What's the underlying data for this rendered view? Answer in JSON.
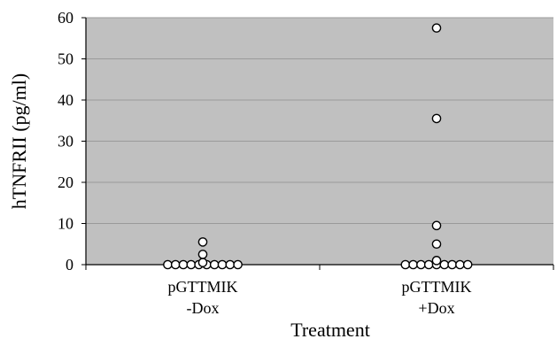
{
  "chart_data": {
    "type": "scatter",
    "title": "",
    "xlabel": "Treatment",
    "ylabel": "hTNFRII (pg/ml)",
    "ylim": [
      0,
      60
    ],
    "yticks": [
      "0",
      "10",
      "20",
      "30",
      "40",
      "50",
      "60"
    ],
    "grid": true,
    "categories": [
      {
        "line1": "pGTTMIK",
        "line2": "-Dox"
      },
      {
        "line1": "pGTTMIK",
        "line2": "+Dox"
      }
    ],
    "series": [
      {
        "category": 0,
        "values": [
          0,
          0,
          0,
          0,
          0,
          0,
          0,
          0,
          0,
          0,
          0.5,
          2.5,
          5.5
        ]
      },
      {
        "category": 1,
        "values": [
          0,
          0,
          0,
          0,
          0,
          0,
          0,
          0,
          0,
          1,
          5,
          9.5,
          35.5,
          57.5
        ]
      }
    ],
    "colors": {
      "plot_bg": "#c0c0c0",
      "grid": "#9a9a9a",
      "marker_fill": "#ffffff",
      "marker_stroke": "#000000"
    }
  }
}
